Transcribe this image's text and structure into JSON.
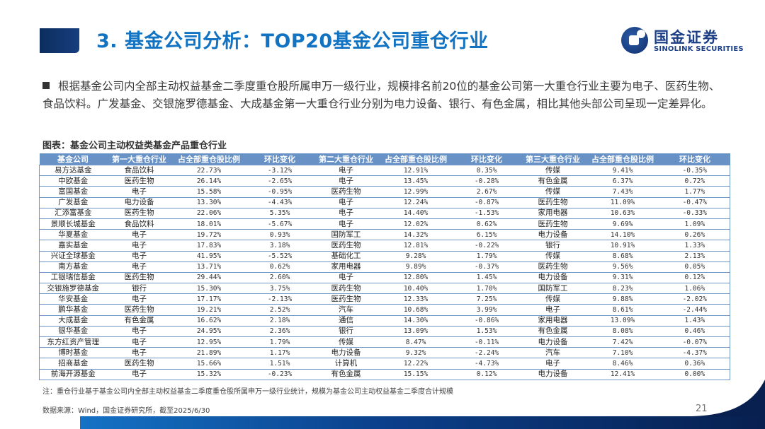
{
  "header": {
    "title": "3. 基金公司分析：TOP20基金公司重仓行业",
    "logo": {
      "cn": "国金证券",
      "en": "SINOLINK SECURITIES",
      "icon": "sinolink-logo-icon"
    }
  },
  "body": {
    "bullet_text": "根据基金公司内全部主动权益基金二季度重仓股所属申万一级行业，规模排名前20位的基金公司第一大重仓行业主要为电子、医药生物、食品饮料。广发基金、交银施罗德基金、大成基金第一大重仓行业分别为电力设备、银行、有色金属，相比其他头部公司呈现一定差异化。"
  },
  "table": {
    "caption": "图表：基金公司主动权益类基金产品重仓行业",
    "columns": [
      "基金公司",
      "第一大重仓行业",
      "占全部重仓股比例",
      "环比变化",
      "第二大重仓行业",
      "占全部重仓股比例",
      "环比变化",
      "第三大重仓行业",
      "占全部重仓股比例",
      "环比变化"
    ],
    "rows": [
      [
        "易方达基金",
        "食品饮料",
        "22.73%",
        "-3.12%",
        "电子",
        "12.91%",
        "0.35%",
        "传媒",
        "9.41%",
        "-0.35%"
      ],
      [
        "中欧基金",
        "医药生物",
        "26.14%",
        "-2.65%",
        "电子",
        "13.45%",
        "-0.28%",
        "有色金属",
        "6.37%",
        "0.72%"
      ],
      [
        "富国基金",
        "电子",
        "15.58%",
        "-0.95%",
        "医药生物",
        "12.99%",
        "2.67%",
        "传媒",
        "7.43%",
        "1.77%"
      ],
      [
        "广发基金",
        "电力设备",
        "13.30%",
        "-4.43%",
        "电子",
        "12.24%",
        "-0.87%",
        "医药生物",
        "11.09%",
        "-0.47%"
      ],
      [
        "汇添富基金",
        "医药生物",
        "22.06%",
        "5.35%",
        "电子",
        "14.40%",
        "-1.53%",
        "家用电器",
        "10.63%",
        "-0.33%"
      ],
      [
        "景顺长城基金",
        "食品饮料",
        "18.01%",
        "-5.67%",
        "电子",
        "12.02%",
        "0.62%",
        "医药生物",
        "9.69%",
        "1.09%"
      ],
      [
        "华夏基金",
        "电子",
        "19.72%",
        "0.93%",
        "国防军工",
        "14.32%",
        "6.15%",
        "电力设备",
        "14.10%",
        "0.26%"
      ],
      [
        "嘉实基金",
        "电子",
        "17.83%",
        "3.18%",
        "医药生物",
        "12.81%",
        "-0.22%",
        "银行",
        "10.91%",
        "1.33%"
      ],
      [
        "兴证全球基金",
        "电子",
        "41.95%",
        "-5.52%",
        "基础化工",
        "9.28%",
        "1.79%",
        "传媒",
        "8.68%",
        "2.13%"
      ],
      [
        "南方基金",
        "电子",
        "13.71%",
        "0.62%",
        "家用电器",
        "9.89%",
        "-0.37%",
        "医药生物",
        "9.56%",
        "0.05%"
      ],
      [
        "工银瑞信基金",
        "医药生物",
        "29.44%",
        "2.60%",
        "电子",
        "12.80%",
        "1.45%",
        "电力设备",
        "9.31%",
        "0.12%"
      ],
      [
        "交银施罗德基金",
        "银行",
        "15.30%",
        "3.75%",
        "医药生物",
        "10.40%",
        "1.70%",
        "国防军工",
        "8.23%",
        "1.06%"
      ],
      [
        "华安基金",
        "电子",
        "17.17%",
        "-2.13%",
        "医药生物",
        "12.33%",
        "7.25%",
        "传媒",
        "9.88%",
        "-2.02%"
      ],
      [
        "鹏华基金",
        "医药生物",
        "19.21%",
        "2.52%",
        "汽车",
        "10.68%",
        "3.99%",
        "电子",
        "8.61%",
        "-2.44%"
      ],
      [
        "大成基金",
        "有色金属",
        "16.62%",
        "2.18%",
        "通信",
        "14.30%",
        "-0.86%",
        "家用电器",
        "13.09%",
        "1.43%"
      ],
      [
        "银华基金",
        "电子",
        "24.95%",
        "2.36%",
        "银行",
        "13.09%",
        "1.53%",
        "有色金属",
        "8.08%",
        "0.46%"
      ],
      [
        "东方红资产管理",
        "电子",
        "12.95%",
        "1.79%",
        "传媒",
        "8.47%",
        "-0.11%",
        "电力设备",
        "7.42%",
        "-0.07%"
      ],
      [
        "博时基金",
        "电子",
        "21.89%",
        "1.17%",
        "电力设备",
        "9.32%",
        "-2.24%",
        "汽车",
        "7.10%",
        "-4.37%"
      ],
      [
        "招商基金",
        "医药生物",
        "15.66%",
        "1.51%",
        "计算机",
        "12.22%",
        "-4.73%",
        "电子",
        "8.46%",
        "0.36%"
      ],
      [
        "前海开源基金",
        "电子",
        "15.32%",
        "-0.23%",
        "有色金属",
        "15.15%",
        "0.12%",
        "电力设备",
        "12.41%",
        "0.00%"
      ]
    ]
  },
  "footer": {
    "note": "注：重仓行业基于基金公司内全部主动权益基金二季度重仓股所属申万一级行业统计，规模为基金公司主动权益基金二季度合计规模",
    "source": "数据来源：Wind，国金证券研究所，截至2025/6/30",
    "page_number": "21"
  },
  "colors": {
    "title_blue": "#1273c2",
    "header_row": "#6892c6",
    "border": "#6f96c9",
    "navy": "#07204f"
  }
}
